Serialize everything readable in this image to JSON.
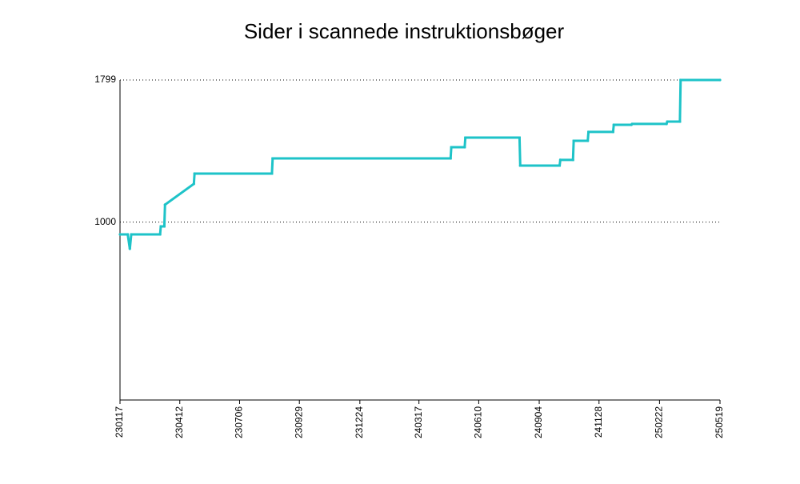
{
  "chart_data": {
    "type": "line",
    "title": "Sider i scannede instruktionsbøger",
    "x": [
      "230117",
      "230128",
      "230131",
      "230202",
      "230315",
      "230316",
      "230321",
      "230322",
      "230502",
      "230503",
      "230821",
      "230822",
      "240501",
      "240502",
      "240521",
      "240522",
      "240807",
      "240808",
      "241003",
      "241004",
      "241022",
      "241023",
      "241112",
      "241113",
      "241218",
      "241219",
      "250113",
      "250114",
      "250304",
      "250305",
      "250323",
      "250324",
      "250519"
    ],
    "series": [
      {
        "color": "#1ec3c8",
        "values": [
          931,
          931,
          850,
          931,
          931,
          976,
          976,
          1098,
          1215,
          1273,
          1273,
          1358,
          1358,
          1421,
          1421,
          1475,
          1475,
          1318,
          1318,
          1350,
          1350,
          1457,
          1457,
          1507,
          1507,
          1547,
          1547,
          1552,
          1552,
          1565,
          1565,
          1799,
          1799
        ]
      }
    ],
    "xlim": [
      "230117",
      "250519"
    ],
    "xticks": [
      "230117",
      "230412",
      "230706",
      "230929",
      "231224",
      "240317",
      "240610",
      "240904",
      "241128",
      "250222",
      "250519"
    ],
    "ylim": [
      0,
      1799
    ],
    "yticks": [
      1000,
      1799
    ],
    "grid": true
  }
}
